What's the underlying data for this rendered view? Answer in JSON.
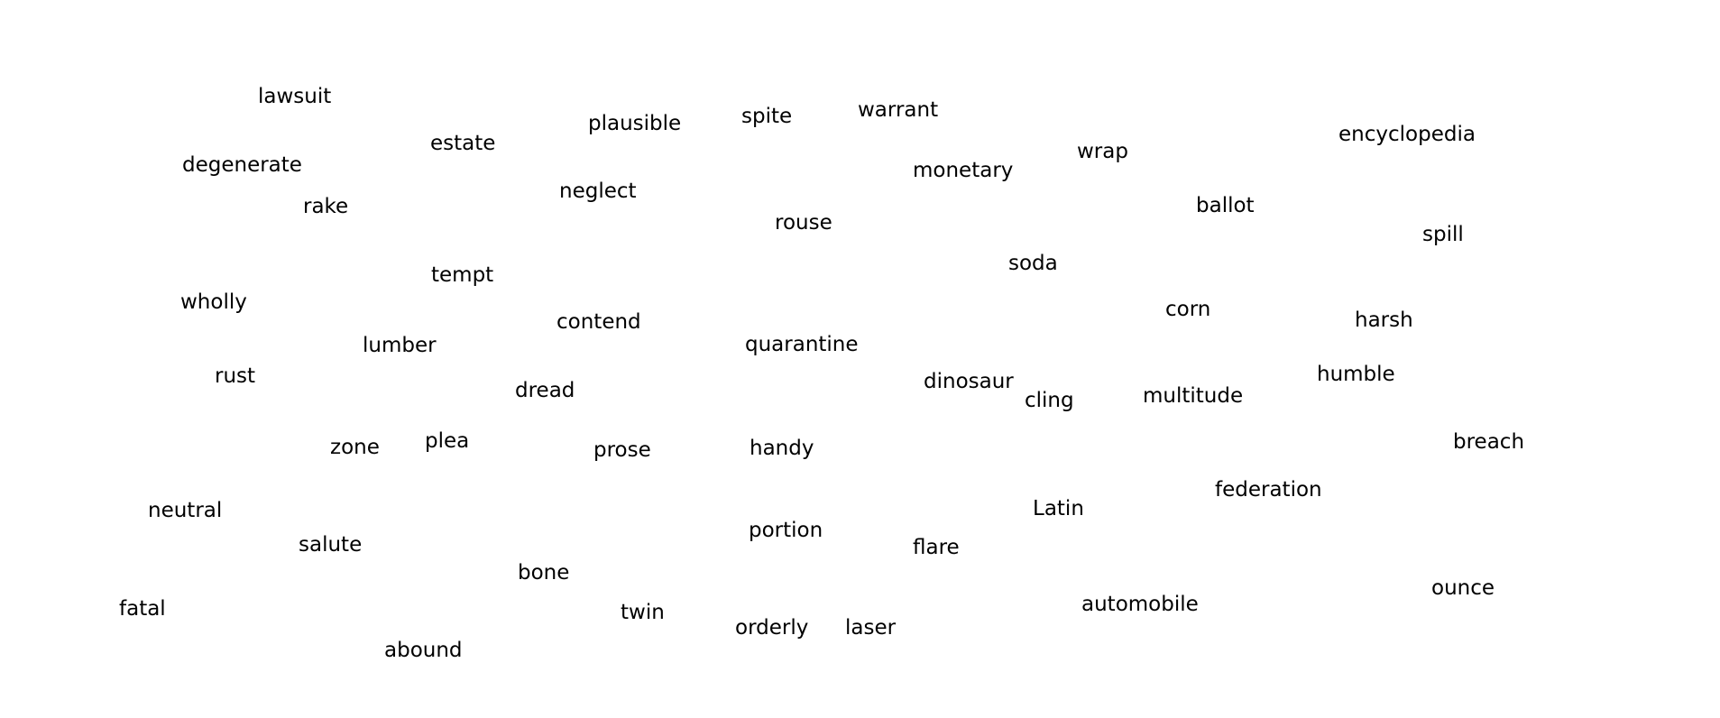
{
  "words": [
    "lawsuit",
    "degenerate",
    "estate",
    "plausible",
    "spite",
    "warrant",
    "monetary",
    "wrap",
    "encyclopedia",
    "rake",
    "neglect",
    "rouse",
    "ballot",
    "spill",
    "tempt",
    "soda",
    "wholly",
    "corn",
    "harsh",
    "contend",
    "lumber",
    "quarantine",
    "rust",
    "dinosaur",
    "humble",
    "dread",
    "cling",
    "multitude",
    "zone",
    "plea",
    "prose",
    "handy",
    "breach",
    "federation",
    "neutral",
    "Latin",
    "portion",
    "salute",
    "flare",
    "bone",
    "ounce",
    "fatal",
    "automobile",
    "twin",
    "orderly",
    "laser",
    "abound"
  ],
  "colors": {
    "background": "#ffffff",
    "text": "#000000"
  }
}
